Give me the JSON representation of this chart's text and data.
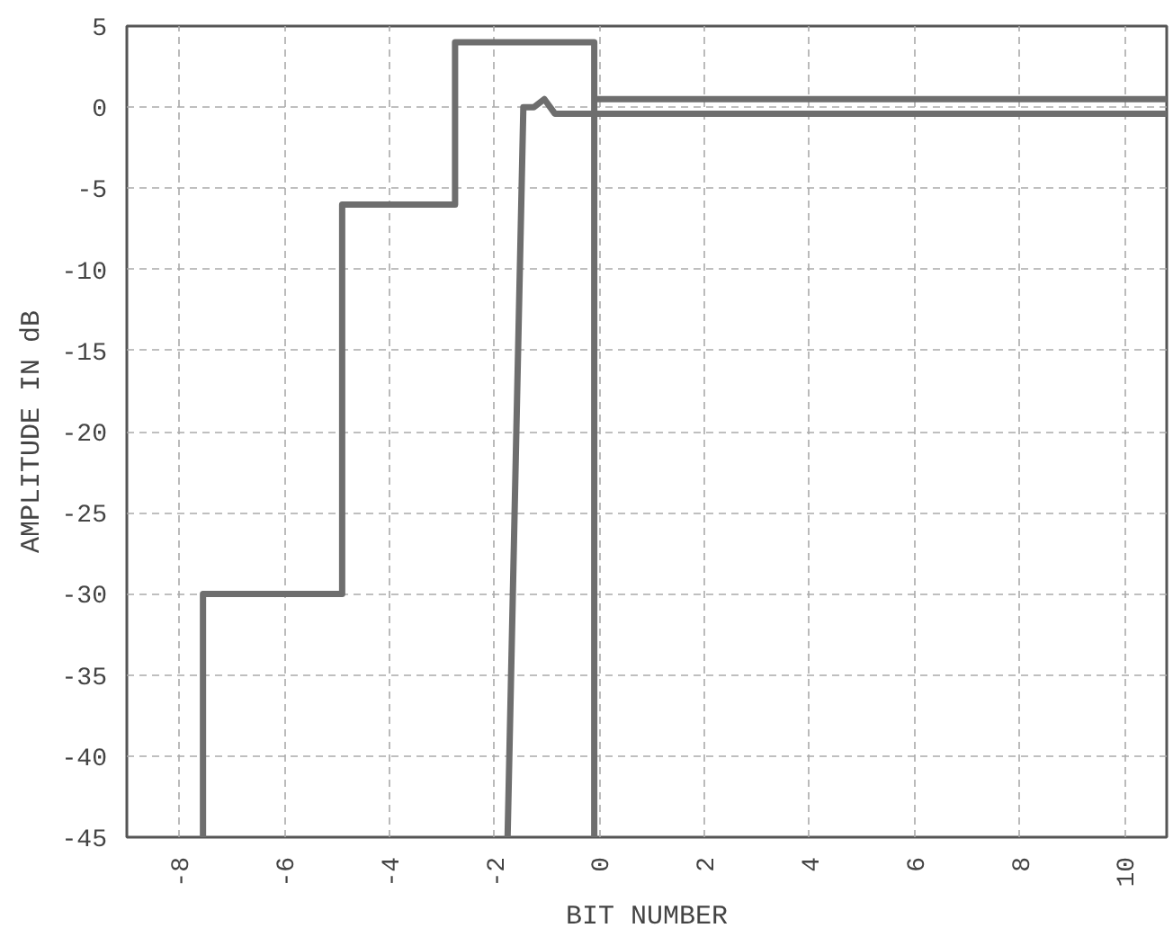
{
  "chart_data": {
    "type": "line",
    "xlabel": "BIT NUMBER",
    "ylabel": "AMPLITUDE IN dB",
    "xlim": [
      -9,
      10.8
    ],
    "ylim": [
      -45,
      5
    ],
    "xticks": [
      -8,
      -6,
      -4,
      -2,
      0,
      2,
      4,
      6,
      8,
      10
    ],
    "yticks": [
      -45,
      -40,
      -35,
      -30,
      -25,
      -20,
      -15,
      -10,
      -5,
      0,
      5
    ],
    "grid": true,
    "marker": "none",
    "line_style": "solid",
    "series": [
      {
        "color": "#6e6e6e",
        "x": [
          -7.55,
          -7.55,
          -4.9,
          -4.9,
          -2.75,
          -2.75,
          -0.1,
          -0.1
        ],
        "values": [
          -45,
          -30,
          -30,
          -6,
          -6,
          4,
          4,
          -45
        ]
      },
      {
        "color": "#6e6e6e",
        "x": [
          -0.1,
          2,
          4,
          6,
          8,
          10,
          10.8
        ],
        "values": [
          0.5,
          0.5,
          0.5,
          0.5,
          0.5,
          0.5,
          0.5
        ]
      },
      {
        "color": "#6e6e6e",
        "x": [
          -1.75,
          -1.45,
          -1.25,
          -1.05,
          -0.85,
          0,
          2,
          4,
          6,
          8,
          10,
          10.8
        ],
        "values": [
          -45,
          0,
          0,
          0.5,
          -0.4,
          -0.4,
          -0.4,
          -0.4,
          -0.4,
          -0.4,
          -0.4,
          -0.4
        ]
      }
    ]
  }
}
